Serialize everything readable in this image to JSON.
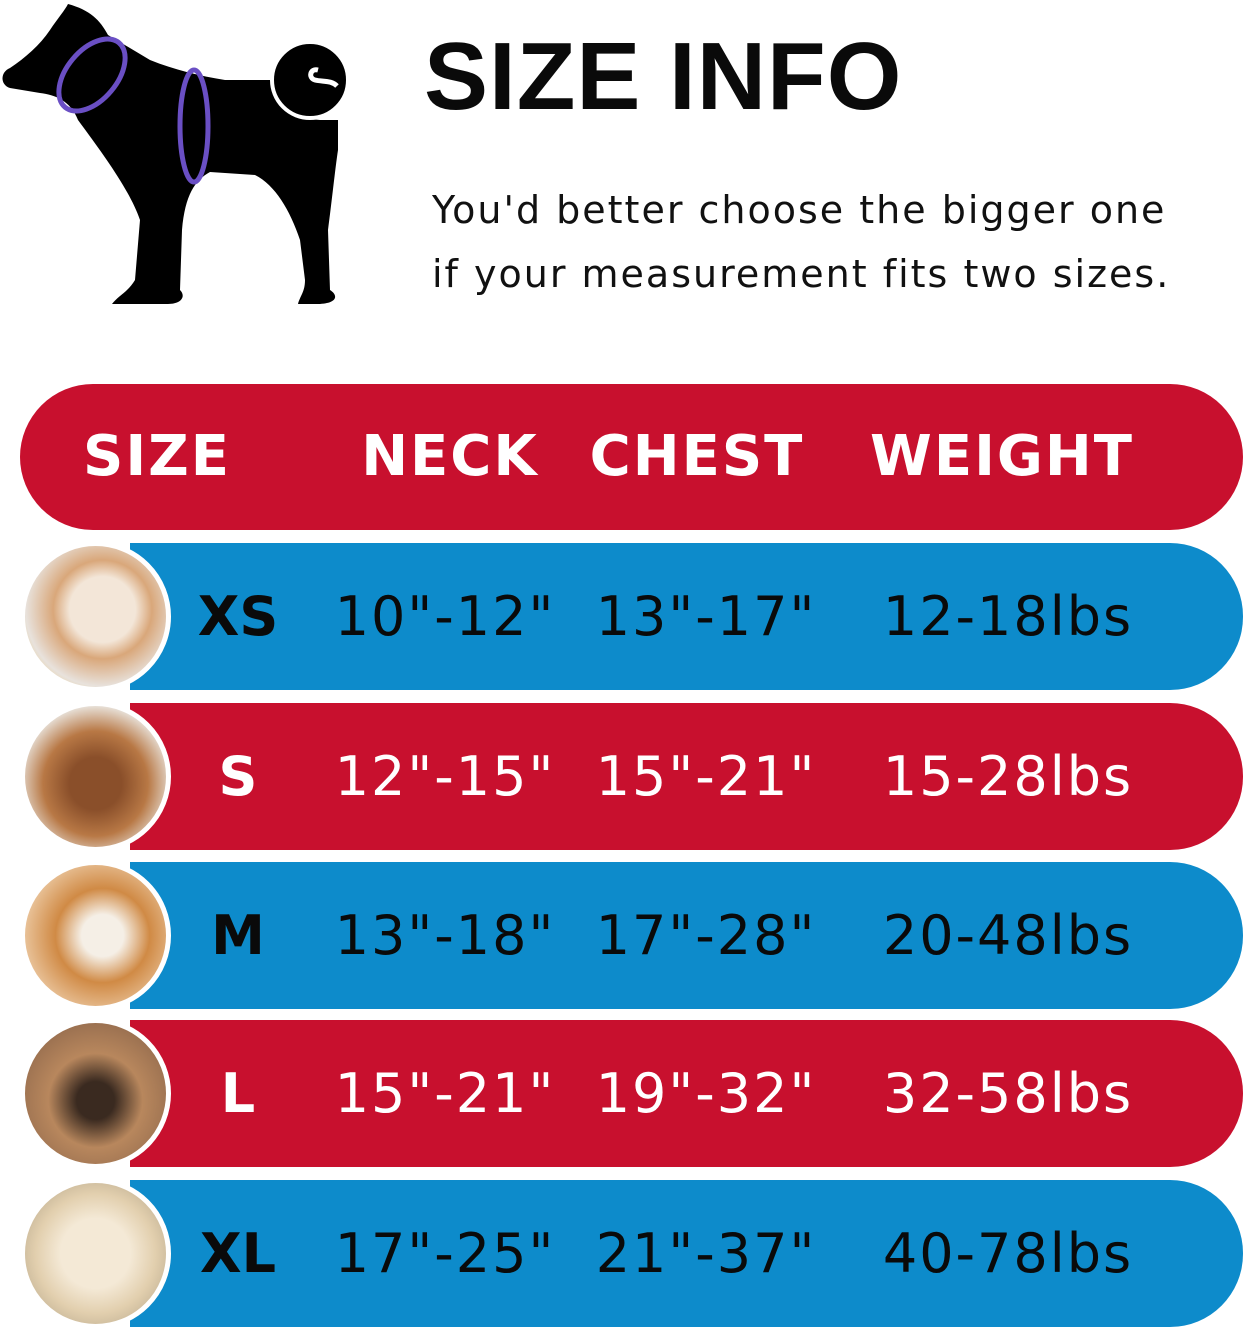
{
  "title": "SIZE INFO",
  "subtitle_lines": [
    "You'd better choose the bigger one",
    "if your measurement fits two sizes."
  ],
  "colors": {
    "red": "#c8102e",
    "blue": "#0d8bcb",
    "measure_ring": "#6a4fc4"
  },
  "table": {
    "headers": [
      "SIZE",
      "NECK",
      "CHEST",
      "WEIGHT"
    ],
    "rows": [
      {
        "size": "XS",
        "neck": "10\"-12\"",
        "chest": "13\"-17\"",
        "weight": "12-18lbs",
        "color": "blue",
        "photo": "pomeranian-photo"
      },
      {
        "size": "S",
        "neck": "12\"-15\"",
        "chest": "15\"-21\"",
        "weight": "15-28lbs",
        "color": "red",
        "photo": "poodle-photo"
      },
      {
        "size": "M",
        "neck": "13\"-18\"",
        "chest": "17\"-28\"",
        "weight": "20-48lbs",
        "color": "blue",
        "photo": "shiba-photo"
      },
      {
        "size": "L",
        "neck": "15\"-21\"",
        "chest": "19\"-32\"",
        "weight": "32-58lbs",
        "color": "red",
        "photo": "french-bulldog-photo"
      },
      {
        "size": "XL",
        "neck": "17\"-25\"",
        "chest": "21\"-37\"",
        "weight": "40-78lbs",
        "color": "blue",
        "photo": "labrador-photo"
      }
    ]
  }
}
